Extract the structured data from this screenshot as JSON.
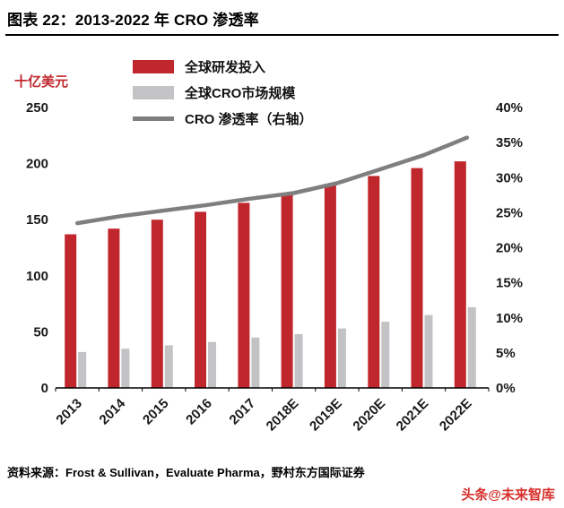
{
  "header": {
    "title": "图表 22：2013-2022 年 CRO 渗透率"
  },
  "chart_data": {
    "type": "bar",
    "subtype": "grouped-bars-with-line",
    "unit_label": "十亿美元",
    "categories": [
      "2013",
      "2014",
      "2015",
      "2016",
      "2017",
      "2018E",
      "2019E",
      "2020E",
      "2021E",
      "2022E"
    ],
    "series": [
      {
        "name": "全球研发投入",
        "type": "bar",
        "axis": "left",
        "color": "#c0272d",
        "values": [
          137,
          142,
          150,
          157,
          165,
          173,
          182,
          189,
          196,
          202
        ]
      },
      {
        "name": "全球CRO市场规模",
        "type": "bar",
        "axis": "left",
        "color": "#c3c3c6",
        "values": [
          32,
          35,
          38,
          41,
          45,
          48,
          53,
          59,
          65,
          72
        ]
      },
      {
        "name": "CRO 渗透率（右轴）",
        "type": "line",
        "axis": "right",
        "color": "#7f7f7f",
        "values": [
          23.5,
          24.5,
          25.3,
          26.1,
          27.0,
          27.8,
          29.2,
          31.2,
          33.2,
          35.7
        ]
      }
    ],
    "left_axis": {
      "min": 0,
      "max": 250,
      "step": 50,
      "ticks": [
        "0",
        "50",
        "100",
        "150",
        "200",
        "250"
      ]
    },
    "right_axis": {
      "min": 0,
      "max": 40,
      "step": 5,
      "ticks": [
        "0%",
        "5%",
        "10%",
        "15%",
        "20%",
        "25%",
        "30%",
        "35%",
        "40%"
      ]
    },
    "grid": "off",
    "legend_position": "top-left-stacked"
  },
  "footer": {
    "source": "资料来源：Frost & Sullivan，Evaluate Pharma，野村东方国际证券",
    "watermark": "头条@未来智库",
    "watermark_color": "#d7302c"
  }
}
